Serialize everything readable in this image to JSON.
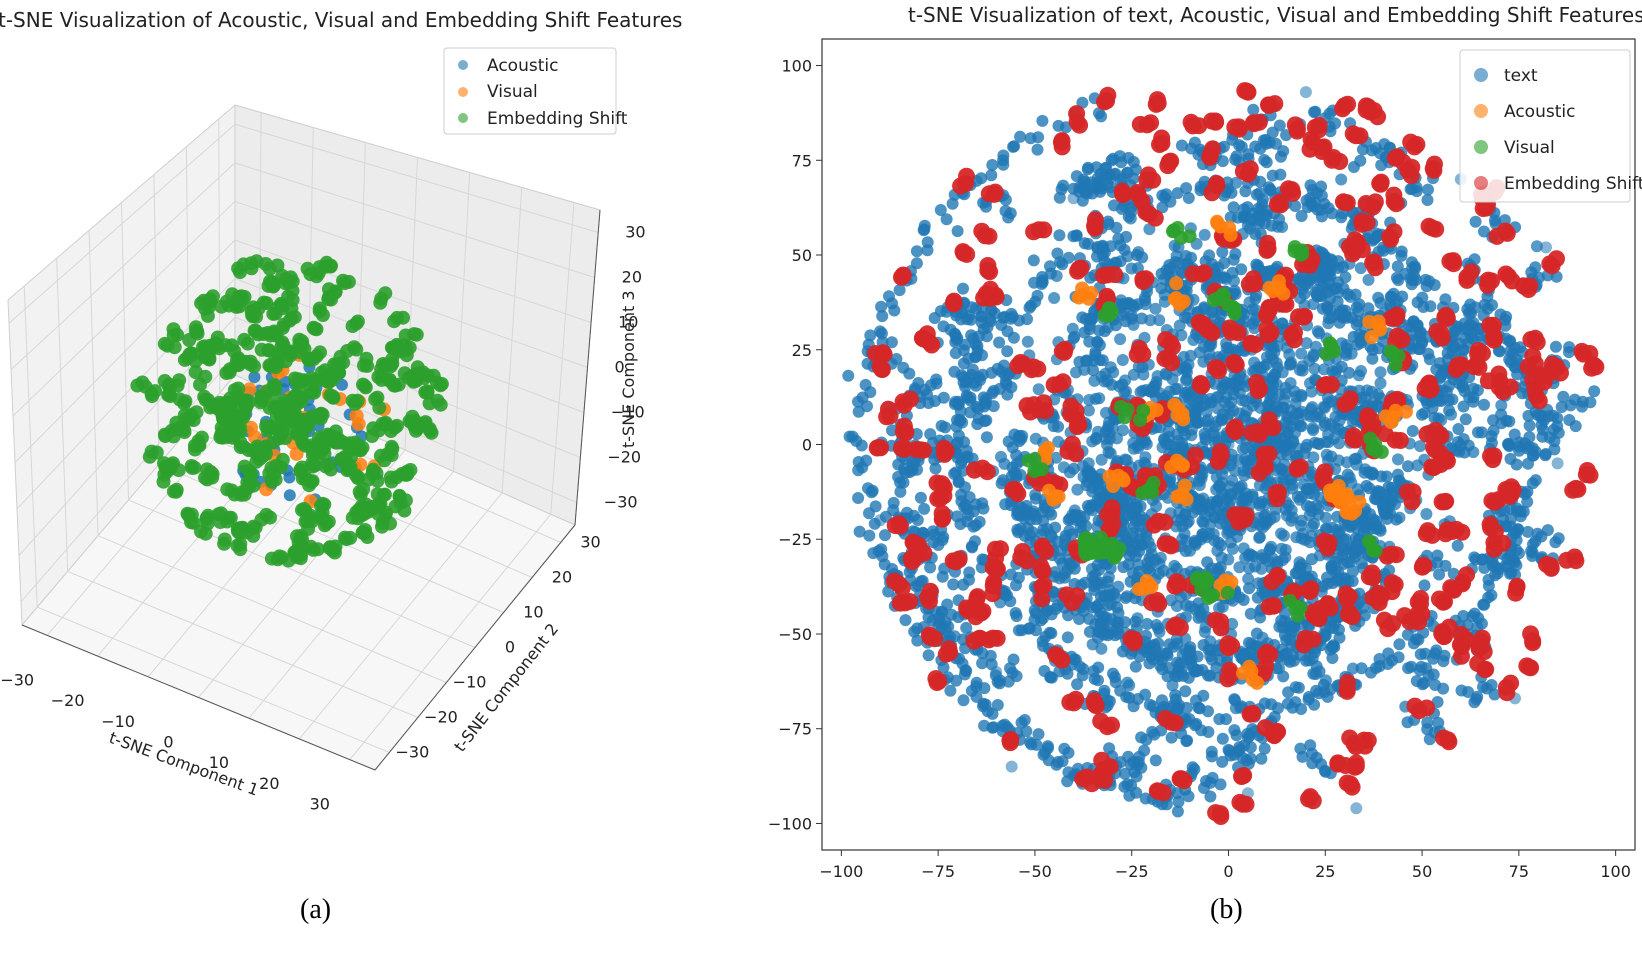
{
  "figure": {
    "caption_a": "(a)",
    "caption_b": "(b)"
  },
  "colors": {
    "text": "#1f77b4",
    "acoustic": "#ff7f0e",
    "visual": "#2ca02c",
    "embedding_shift": "#d62728"
  },
  "chart_data": [
    {
      "type": "scatter",
      "projection": "3d",
      "title": "t-SNE Visualization of Acoustic, Visual and Embedding Shift Features",
      "xlabel": "t-SNE Component 1",
      "ylabel": "t-SNE Component 2",
      "zlabel": "t-SNE Component 3",
      "xlim": [
        -35,
        35
      ],
      "ylim": [
        -35,
        35
      ],
      "zlim": [
        -35,
        35
      ],
      "x_ticks": [
        "−30",
        "−20",
        "−10",
        "0",
        "10",
        "20",
        "30"
      ],
      "y_ticks": [
        "−30",
        "−20",
        "−10",
        "0",
        "10",
        "20",
        "30"
      ],
      "z_ticks": [
        "−30",
        "−20",
        "−10",
        "0",
        "10",
        "20",
        "30"
      ],
      "legend": [
        "Acoustic",
        "Visual",
        "Embedding Shift"
      ],
      "legend_position": "top-right",
      "series": [
        {
          "name": "Acoustic",
          "color": "#1f77b4",
          "cluster_radius": 12,
          "approx_points": 60
        },
        {
          "name": "Visual",
          "color": "#ff7f0e",
          "cluster_radius": 15,
          "approx_points": 30
        },
        {
          "name": "Embedding Shift",
          "color": "#2ca02c",
          "cluster_radius": 30,
          "approx_points": 260
        }
      ]
    },
    {
      "type": "scatter",
      "title": "t-SNE Visualization of text, Acoustic, Visual and Embedding Shift Features",
      "xlabel": "",
      "ylabel": "",
      "xlim": [
        -105,
        105
      ],
      "ylim": [
        -107,
        107
      ],
      "x_ticks": [
        -100,
        -75,
        -50,
        -25,
        0,
        25,
        50,
        75,
        100
      ],
      "y_ticks": [
        100,
        75,
        50,
        25,
        0,
        -25,
        -50,
        -75,
        -100
      ],
      "x_tick_labels": [
        "−100",
        "−75",
        "−50",
        "−25",
        "0",
        "25",
        "50",
        "75",
        "100"
      ],
      "y_tick_labels": [
        "100",
        "75",
        "50",
        "25",
        "0",
        "−25",
        "−50",
        "−75",
        "−100"
      ],
      "legend": [
        "text",
        "Acoustic",
        "Visual",
        "Embedding Shift"
      ],
      "legend_position": "top-right",
      "series": [
        {
          "name": "text",
          "color": "#1f77b4",
          "points": [
            [
              82,
              52
            ],
            [
              -56,
              -85
            ],
            [
              33,
              -96
            ],
            [
              74,
              -67
            ],
            [
              0,
              0
            ],
            [
              -15,
              -9
            ],
            [
              12,
              8
            ],
            [
              -88,
              10
            ],
            [
              -90,
              -20
            ],
            [
              85,
              -5
            ],
            [
              -60,
              -60
            ],
            [
              60,
              70
            ],
            [
              -40,
              65
            ],
            [
              20,
              93
            ],
            [
              5,
              -92
            ]
          ]
        },
        {
          "name": "Acoustic",
          "color": "#ff7f0e",
          "points": [
            [
              -37,
              40
            ],
            [
              -13,
              38
            ],
            [
              -1,
              58
            ],
            [
              13,
              40
            ],
            [
              38,
              31
            ],
            [
              -47,
              -3
            ],
            [
              -45,
              -13
            ],
            [
              -29,
              -10
            ],
            [
              -20,
              8
            ],
            [
              27,
              -13
            ],
            [
              30,
              -15
            ],
            [
              32,
              -18
            ],
            [
              42,
              8
            ],
            [
              5,
              -60
            ],
            [
              -22,
              -37
            ],
            [
              -12,
              -14
            ],
            [
              1,
              -37
            ],
            [
              -13,
              8
            ],
            [
              -13,
              -5
            ],
            [
              28,
              -12
            ]
          ]
        },
        {
          "name": "Visual",
          "color": "#2ca02c",
          "points": [
            [
              -13,
              56
            ],
            [
              18,
              51
            ],
            [
              -30,
              34
            ],
            [
              -2,
              38
            ],
            [
              1,
              37
            ],
            [
              27,
              25
            ],
            [
              42,
              23
            ],
            [
              -30,
              -27
            ],
            [
              -32,
              -28
            ],
            [
              -34,
              -28
            ],
            [
              -36,
              -26
            ],
            [
              -37,
              -28
            ],
            [
              -8,
              -36
            ],
            [
              -4,
              -40
            ],
            [
              18,
              -43
            ],
            [
              37,
              -27
            ],
            [
              -21,
              -11
            ],
            [
              -49,
              -5
            ],
            [
              -26,
              9
            ],
            [
              39,
              0
            ]
          ]
        },
        {
          "name": "Embedding Shift",
          "color": "#d62728",
          "points": []
        }
      ]
    }
  ]
}
